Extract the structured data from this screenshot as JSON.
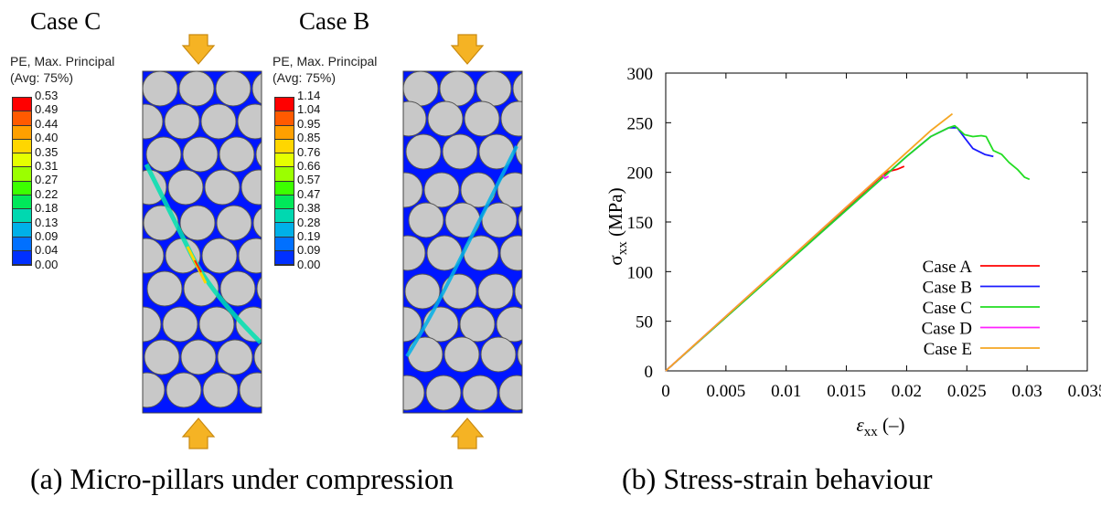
{
  "panel_a": {
    "caption": "(a) Micro-pillars under compression",
    "pillars": [
      {
        "title": "Case C",
        "legend_heading": "PE, Max. Principal",
        "legend_avg": "(Avg: 75%)",
        "levels": [
          "0.53",
          "0.49",
          "0.44",
          "0.40",
          "0.35",
          "0.31",
          "0.27",
          "0.22",
          "0.18",
          "0.13",
          "0.09",
          "0.04",
          "0.00"
        ]
      },
      {
        "title": "Case B",
        "legend_heading": "PE, Max. Principal",
        "legend_avg": "(Avg: 75%)",
        "levels": [
          "1.14",
          "1.04",
          "0.95",
          "0.85",
          "0.76",
          "0.66",
          "0.57",
          "0.47",
          "0.38",
          "0.28",
          "0.19",
          "0.09",
          "0.00"
        ]
      }
    ],
    "colormap": [
      "#ff0000",
      "#ff5a00",
      "#ffa000",
      "#ffd600",
      "#e5ff00",
      "#9bff00",
      "#3cff00",
      "#00e85a",
      "#00d8b0",
      "#00b0e8",
      "#0070ff",
      "#0030ff"
    ],
    "colors": {
      "pillar_blue": "#0016ff",
      "fiber": "#c8c8c8",
      "arrow": "#f5b324"
    }
  },
  "panel_b": {
    "caption": "(b) Stress-strain behaviour"
  },
  "chart_data": {
    "type": "line",
    "title": "",
    "xlabel_symbol": "ε",
    "xlabel_sub": "xx",
    "xlabel_unit": " (–)",
    "ylabel_symbol": "σ",
    "ylabel_sub": "xx",
    "ylabel_unit": " (MPa)",
    "xlim": [
      0,
      0.035
    ],
    "ylim": [
      0,
      300
    ],
    "xticks": [
      0,
      0.005,
      0.01,
      0.015,
      0.02,
      0.025,
      0.03,
      0.035
    ],
    "xtick_labels": [
      "0",
      "0.005",
      "0.01",
      "0.015",
      "0.02",
      "0.025",
      "0.03",
      "0.035"
    ],
    "yticks": [
      0,
      50,
      100,
      150,
      200,
      250,
      300
    ],
    "ytick_labels": [
      "0",
      "50",
      "100",
      "150",
      "200",
      "250",
      "300"
    ],
    "legend_position": "bottom-right",
    "series": [
      {
        "name": "Case A",
        "color": "#ff0000",
        "x": [
          0,
          0.018,
          0.0185,
          0.0192,
          0.0198
        ],
        "y": [
          0,
          197,
          201,
          203,
          206
        ]
      },
      {
        "name": "Case B",
        "color": "#1a1aff",
        "x": [
          0,
          0.02,
          0.022,
          0.0235,
          0.0242,
          0.0248,
          0.0255,
          0.0265,
          0.0272
        ],
        "y": [
          0,
          216,
          236,
          245,
          245,
          235,
          224,
          218,
          216
        ]
      },
      {
        "name": "Case C",
        "color": "#22dd22",
        "x": [
          0,
          0.02,
          0.022,
          0.0235,
          0.024,
          0.0248,
          0.0255,
          0.0262,
          0.0266,
          0.0272,
          0.0279,
          0.0285,
          0.0292,
          0.0298,
          0.0302
        ],
        "y": [
          0,
          216,
          236,
          245,
          247,
          238,
          236,
          237,
          236,
          222,
          218,
          210,
          203,
          195,
          193
        ]
      },
      {
        "name": "Case D",
        "color": "#ff22ff",
        "x": [
          0,
          0.018,
          0.0182,
          0.0185
        ],
        "y": [
          0,
          198,
          194,
          196
        ]
      },
      {
        "name": "Case E",
        "color": "#f5a623",
        "x": [
          0,
          0.012,
          0.018,
          0.022,
          0.0238
        ],
        "y": [
          0,
          132,
          198,
          242,
          259
        ]
      }
    ]
  }
}
